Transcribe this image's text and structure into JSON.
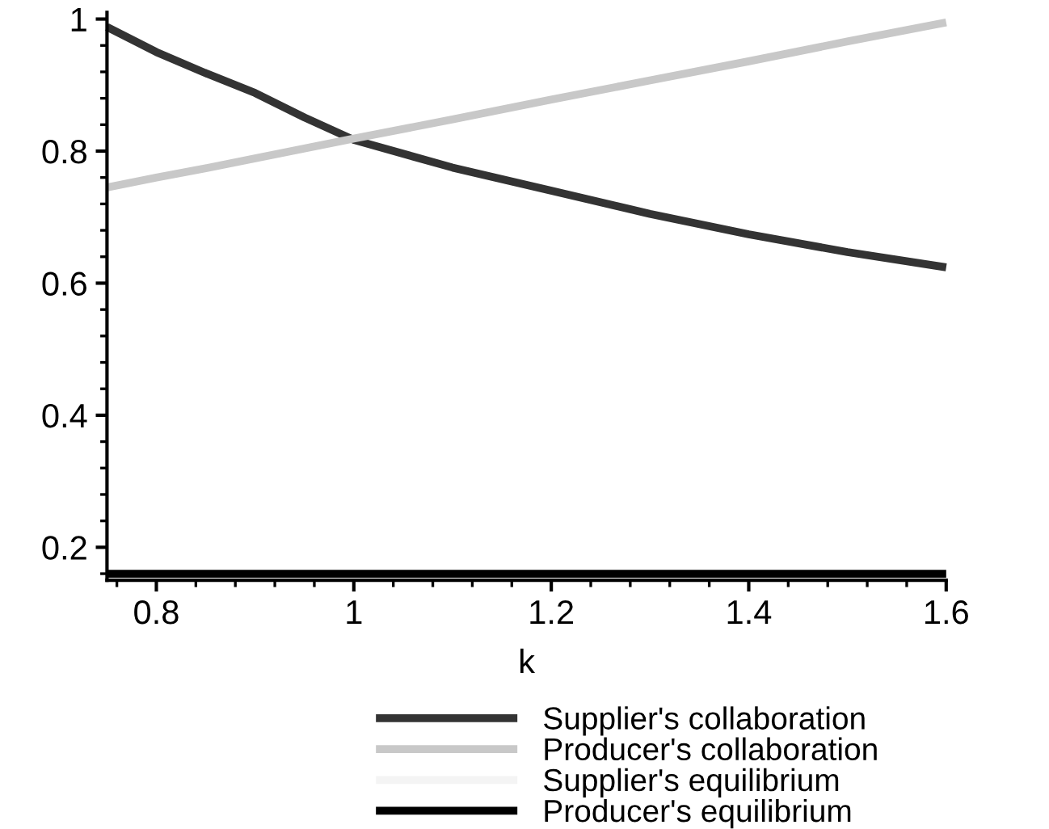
{
  "chart_data": {
    "type": "line",
    "xlabel": "k",
    "x": [
      0.75,
      0.8,
      0.85,
      0.9,
      0.95,
      1.0,
      1.1,
      1.2,
      1.3,
      1.4,
      1.5,
      1.6
    ],
    "series": [
      {
        "name": "Supplier's collaboration",
        "color": "#333333",
        "values": [
          0.988,
          0.95,
          0.918,
          0.888,
          0.851,
          0.817,
          0.775,
          0.74,
          0.705,
          0.674,
          0.647,
          0.624
        ]
      },
      {
        "name": "Producer's collaboration",
        "color": "#c8c8c8",
        "values": [
          0.745,
          0.76,
          0.774,
          0.789,
          0.804,
          0.819,
          0.848,
          0.878,
          0.907,
          0.936,
          0.966,
          0.995
        ]
      },
      {
        "name": "Supplier's equilibrium",
        "color": "#f4f4f4",
        "values": [
          null,
          null,
          null,
          null,
          null,
          null,
          null,
          null,
          null,
          null,
          null,
          null
        ]
      },
      {
        "name": "Producer's equilibrium",
        "color": "#000000",
        "values": [
          0.16,
          0.16,
          0.16,
          0.16,
          0.16,
          0.16,
          0.16,
          0.16,
          0.16,
          0.16,
          0.16,
          0.16
        ]
      }
    ],
    "xlim": [
      0.75,
      1.6
    ],
    "xticks": [
      0.8,
      1,
      1.2,
      1.4,
      1.6
    ],
    "ylim": [
      0.15,
      1.01
    ],
    "yticks": [
      0.2,
      0.4,
      0.6,
      0.8,
      1
    ],
    "legend": "bottom",
    "grid": false,
    "marker": "none",
    "line_style": "solid"
  }
}
